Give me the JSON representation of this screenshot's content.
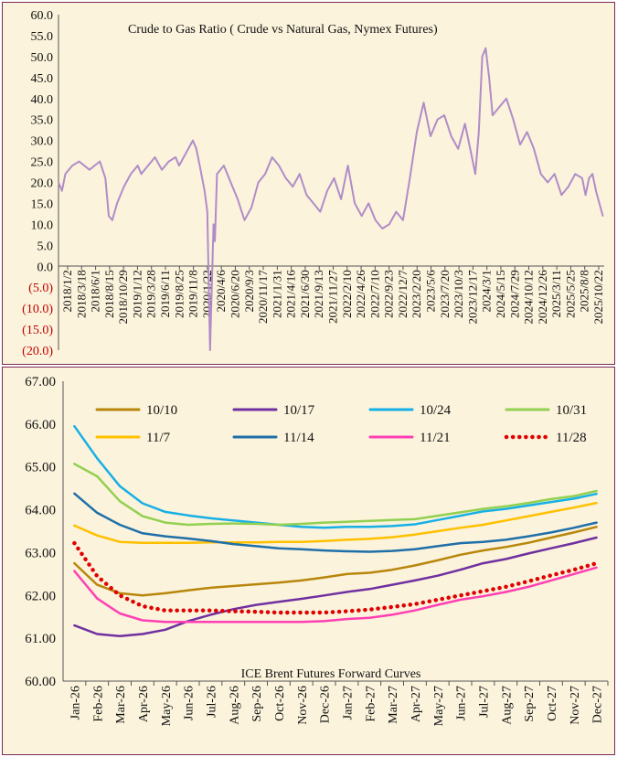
{
  "chart_data": [
    {
      "type": "line",
      "title": "Crude to Gas Ratio ( Crude vs Natural Gas, Nymex Futures)",
      "xlabel": "",
      "ylabel": "",
      "ylim": [
        -20,
        60
      ],
      "y_ticks": [
        "60.0",
        "55.0",
        "50.0",
        "45.0",
        "40.0",
        "35.0",
        "30.0",
        "25.0",
        "20.0",
        "15.0",
        "10.0",
        "5.0",
        "0.0",
        "(5.0)",
        "(10.0)",
        "(15.0)",
        "(20.0)"
      ],
      "y_tick_values": [
        60,
        55,
        50,
        45,
        40,
        35,
        30,
        25,
        20,
        15,
        10,
        5,
        0,
        -5,
        -10,
        -15,
        -20
      ],
      "x_range": [
        2018.0,
        2025.92
      ],
      "x_tick_labels": [
        "2018/1/2",
        "2018/3/18",
        "2018/6/1",
        "2018/8/15",
        "2018/10/29",
        "2019/1/12",
        "2019/3/28",
        "2019/6/11",
        "2019/8/25",
        "2019/11/8",
        "2020/1/22",
        "2020/4/6",
        "2020/6/20",
        "2020/9/3",
        "2020/11/17",
        "2021/1/31",
        "2021/4/16",
        "2021/6/30",
        "2021/9/13",
        "2021/11/27",
        "2022/2/10",
        "2022/4/26",
        "2022/7/10",
        "2022/9/23",
        "2022/12/7",
        "2023/2/20",
        "2023/5/6",
        "2023/7/20",
        "2023/10/3",
        "2023/12/17",
        "2024/3/1",
        "2024/5/15",
        "2024/7/29",
        "2024/10/12",
        "2024/12/26",
        "2025/3/11",
        "2025/5/25",
        "2025/8/8",
        "2025/10/22"
      ],
      "series": [
        {
          "name": "Crude to Gas Ratio",
          "color": "#b08cc8",
          "x": [
            2018.0,
            2018.05,
            2018.1,
            2018.2,
            2018.3,
            2018.45,
            2018.6,
            2018.68,
            2018.73,
            2018.78,
            2018.85,
            2018.95,
            2019.05,
            2019.15,
            2019.2,
            2019.3,
            2019.4,
            2019.5,
            2019.6,
            2019.7,
            2019.75,
            2019.85,
            2019.95,
            2020.0,
            2020.05,
            2020.12,
            2020.16,
            2020.2,
            2020.25,
            2020.27,
            2020.3,
            2020.4,
            2020.5,
            2020.6,
            2020.7,
            2020.8,
            2020.9,
            2021.0,
            2021.1,
            2021.2,
            2021.3,
            2021.4,
            2021.5,
            2021.6,
            2021.7,
            2021.8,
            2021.9,
            2022.0,
            2022.1,
            2022.2,
            2022.3,
            2022.4,
            2022.5,
            2022.6,
            2022.7,
            2022.8,
            2022.9,
            2023.0,
            2023.1,
            2023.2,
            2023.3,
            2023.4,
            2023.5,
            2023.6,
            2023.7,
            2023.8,
            2023.9,
            2024.0,
            2024.05,
            2024.1,
            2024.15,
            2024.2,
            2024.25,
            2024.3,
            2024.4,
            2024.5,
            2024.6,
            2024.7,
            2024.8,
            2024.9,
            2025.0,
            2025.1,
            2025.2,
            2025.3,
            2025.4,
            2025.5,
            2025.6,
            2025.65,
            2025.7,
            2025.75,
            2025.8,
            2025.85,
            2025.9
          ],
          "y": [
            20,
            18,
            22,
            24,
            25,
            23,
            25,
            21,
            12,
            11,
            15,
            19,
            22,
            24,
            22,
            24,
            26,
            23,
            25,
            26,
            24,
            27,
            30,
            28,
            24,
            18,
            13,
            -20,
            10,
            6,
            22,
            24,
            20,
            16,
            11,
            14,
            20,
            22,
            26,
            24,
            21,
            19,
            22,
            17,
            15,
            13,
            18,
            21,
            16,
            24,
            15,
            12,
            15,
            11,
            9,
            10,
            13,
            11,
            21,
            32,
            39,
            31,
            35,
            36,
            31,
            28,
            34,
            26,
            22,
            32,
            50,
            52,
            45,
            36,
            38,
            40,
            35,
            29,
            32,
            28,
            22,
            20,
            22,
            17,
            19,
            22,
            21,
            17,
            21,
            22,
            18,
            15,
            12
          ]
        }
      ]
    },
    {
      "type": "line",
      "title": "ICE Brent Futures Forward Curves",
      "xlabel": "",
      "ylabel": "",
      "ylim": [
        60,
        67
      ],
      "y_ticks": [
        "67.00",
        "66.00",
        "65.00",
        "64.00",
        "63.00",
        "62.00",
        "61.00",
        "60.00"
      ],
      "y_tick_values": [
        67,
        66,
        65,
        64,
        63,
        62,
        61,
        60
      ],
      "categories": [
        "Jan-26",
        "Feb-26",
        "Mar-26",
        "Apr-26",
        "May-26",
        "Jun-26",
        "Jul-26",
        "Aug-26",
        "Sep-26",
        "Oct-26",
        "Nov-26",
        "Dec-26",
        "Jan-27",
        "Feb-27",
        "Mar-27",
        "Apr-27",
        "May-27",
        "Jun-27",
        "Jul-27",
        "Aug-27",
        "Sep-27",
        "Oct-27",
        "Nov-27",
        "Dec-27"
      ],
      "series": [
        {
          "name": "10/10",
          "color": "#b8860b",
          "style": "solid",
          "values": [
            62.75,
            62.25,
            62.05,
            62.0,
            62.05,
            62.12,
            62.18,
            62.22,
            62.26,
            62.3,
            62.35,
            62.42,
            62.5,
            62.53,
            62.6,
            62.7,
            62.82,
            62.95,
            63.05,
            63.13,
            63.23,
            63.35,
            63.47,
            63.6
          ]
        },
        {
          "name": "10/17",
          "color": "#7030a0",
          "style": "solid",
          "values": [
            61.3,
            61.1,
            61.05,
            61.1,
            61.2,
            61.4,
            61.55,
            61.68,
            61.78,
            61.85,
            61.92,
            62.0,
            62.08,
            62.15,
            62.25,
            62.35,
            62.46,
            62.6,
            62.75,
            62.85,
            62.98,
            63.1,
            63.22,
            63.35
          ]
        },
        {
          "name": "10/24",
          "color": "#17b0e5",
          "style": "solid",
          "values": [
            65.95,
            65.2,
            64.55,
            64.15,
            63.95,
            63.87,
            63.8,
            63.75,
            63.7,
            63.65,
            63.6,
            63.58,
            63.6,
            63.6,
            63.62,
            63.66,
            63.76,
            63.86,
            63.96,
            64.02,
            64.1,
            64.18,
            64.26,
            64.37
          ]
        },
        {
          "name": "10/31",
          "color": "#92d050",
          "style": "solid",
          "values": [
            65.07,
            64.78,
            64.2,
            63.85,
            63.7,
            63.65,
            63.67,
            63.68,
            63.67,
            63.65,
            63.67,
            63.7,
            63.72,
            63.74,
            63.76,
            63.78,
            63.86,
            63.94,
            64.02,
            64.08,
            64.16,
            64.25,
            64.32,
            64.44
          ]
        },
        {
          "name": "11/7",
          "color": "#ffc000",
          "style": "solid",
          "values": [
            63.63,
            63.4,
            63.25,
            63.23,
            63.23,
            63.23,
            63.24,
            63.24,
            63.24,
            63.25,
            63.25,
            63.27,
            63.3,
            63.32,
            63.36,
            63.42,
            63.5,
            63.58,
            63.65,
            63.75,
            63.85,
            63.95,
            64.05,
            64.16
          ]
        },
        {
          "name": "11/14",
          "color": "#1f6fa8",
          "style": "solid",
          "values": [
            64.38,
            63.93,
            63.65,
            63.45,
            63.38,
            63.33,
            63.27,
            63.2,
            63.15,
            63.1,
            63.08,
            63.05,
            63.03,
            63.02,
            63.04,
            63.08,
            63.15,
            63.22,
            63.25,
            63.3,
            63.38,
            63.47,
            63.58,
            63.7
          ]
        },
        {
          "name": "11/21",
          "color": "#ff3fb4",
          "style": "solid",
          "values": [
            62.57,
            61.93,
            61.58,
            61.42,
            61.38,
            61.38,
            61.38,
            61.38,
            61.38,
            61.38,
            61.38,
            61.4,
            61.45,
            61.48,
            61.55,
            61.65,
            61.78,
            61.9,
            61.98,
            62.08,
            62.2,
            62.35,
            62.5,
            62.65
          ]
        },
        {
          "name": "11/28",
          "color": "#e00000",
          "style": "dotted",
          "values": [
            63.22,
            62.45,
            62.0,
            61.75,
            61.65,
            61.65,
            61.65,
            61.63,
            61.62,
            61.6,
            61.6,
            61.6,
            61.63,
            61.67,
            61.73,
            61.8,
            61.9,
            62.0,
            62.1,
            62.2,
            62.33,
            62.47,
            62.6,
            62.75
          ]
        }
      ]
    }
  ]
}
